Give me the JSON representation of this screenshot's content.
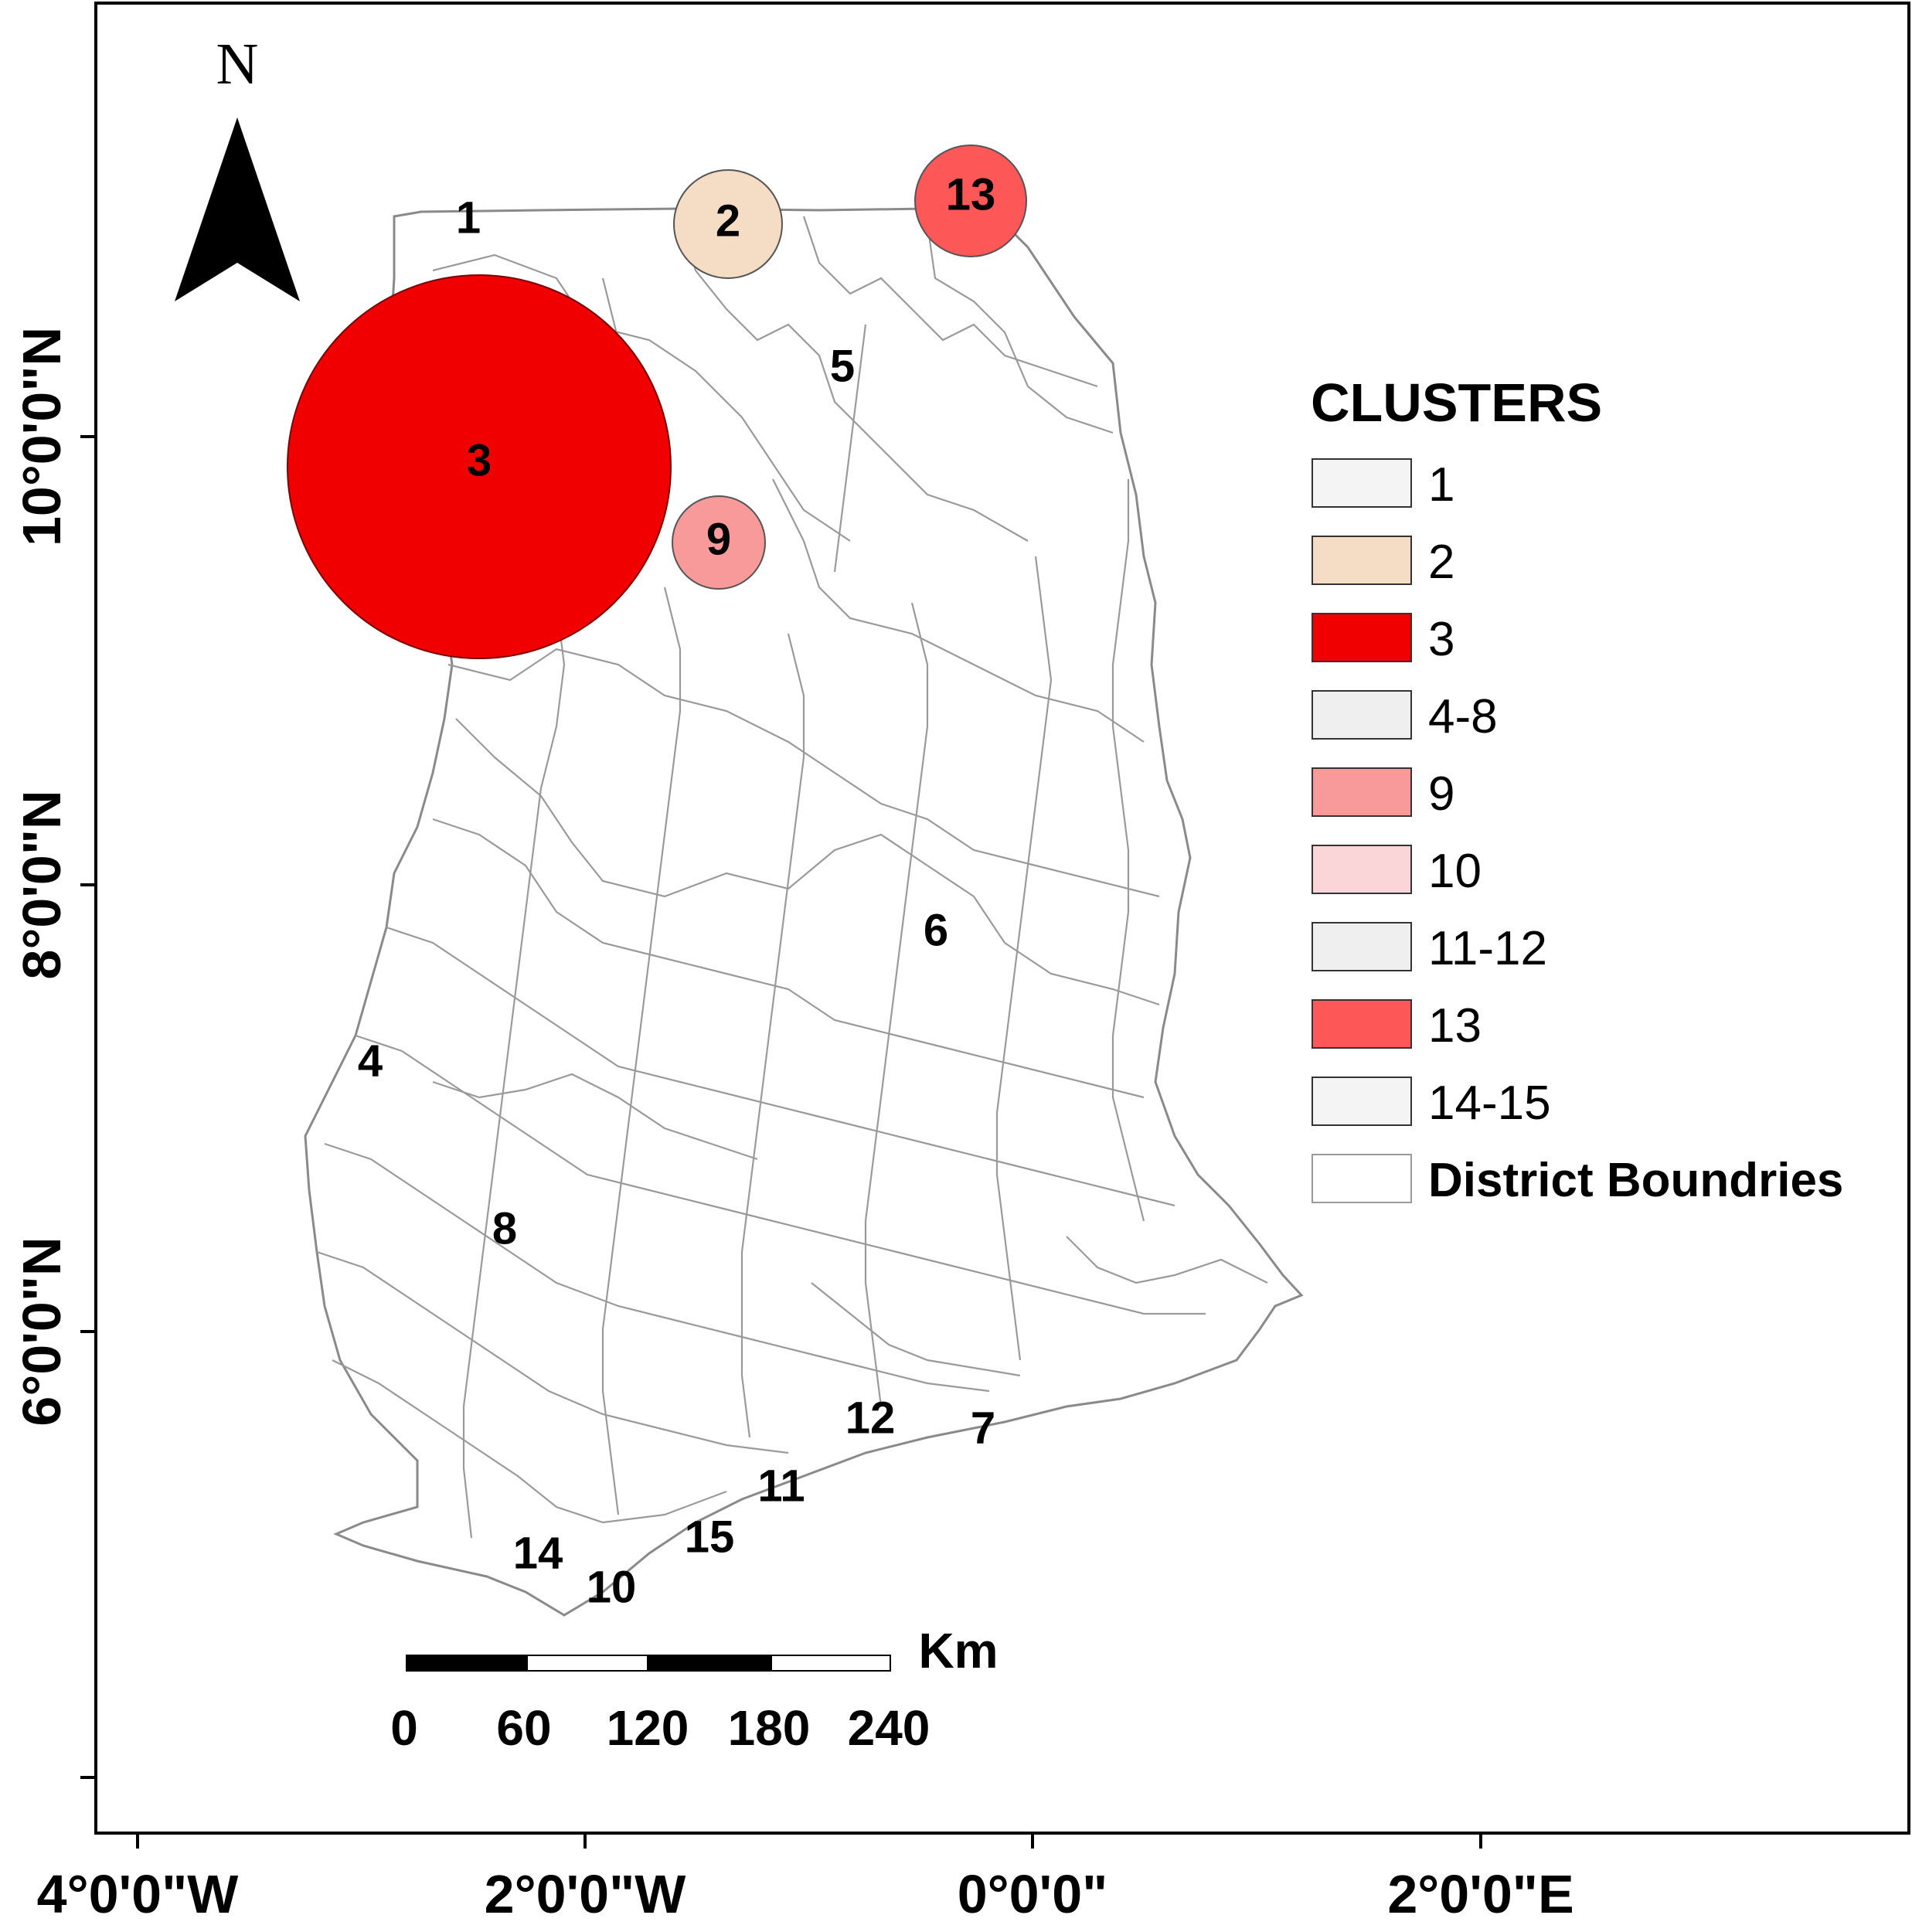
{
  "north": {
    "label": "N"
  },
  "axes": {
    "x_ticks": [
      {
        "label": "4°0'0\"W"
      },
      {
        "label": "2°0'0\"W"
      },
      {
        "label": "0°0'0\""
      },
      {
        "label": "2°0'0\"E"
      }
    ],
    "y_ticks": [
      {
        "label": "10°0'0\"N"
      },
      {
        "label": "8°0'0\"N"
      },
      {
        "label": "6°0'0\"N"
      }
    ]
  },
  "clusters": [
    {
      "id": "1",
      "label": "1"
    },
    {
      "id": "2",
      "label": "2",
      "color": "#f5dcc5"
    },
    {
      "id": "3",
      "label": "3",
      "color": "#f00000"
    },
    {
      "id": "4",
      "label": "4"
    },
    {
      "id": "5",
      "label": "5"
    },
    {
      "id": "6",
      "label": "6"
    },
    {
      "id": "7",
      "label": "7"
    },
    {
      "id": "8",
      "label": "8"
    },
    {
      "id": "9",
      "label": "9",
      "color": "#f99a9a"
    },
    {
      "id": "10",
      "label": "10"
    },
    {
      "id": "11",
      "label": "11"
    },
    {
      "id": "12",
      "label": "12"
    },
    {
      "id": "13",
      "label": "13",
      "color": "#fd5757"
    },
    {
      "id": "14",
      "label": "14"
    },
    {
      "id": "15",
      "label": "15"
    }
  ],
  "legend": {
    "title": "CLUSTERS",
    "items": [
      {
        "label": "1",
        "color": "#f4f4f4"
      },
      {
        "label": "2",
        "color": "#f5dcc5"
      },
      {
        "label": "3",
        "color": "#f00000"
      },
      {
        "label": "4-8",
        "color": "#efefef"
      },
      {
        "label": "9",
        "color": "#f99a9a"
      },
      {
        "label": "10",
        "color": "#fbd6d8"
      },
      {
        "label": "11-12",
        "color": "#efefef"
      },
      {
        "label": "13",
        "color": "#fd5757"
      },
      {
        "label": "14-15",
        "color": "#f4f4f4"
      },
      {
        "label": "District Boundries",
        "color": "#ffffff"
      }
    ]
  },
  "scale_bar": {
    "unit": "Km",
    "ticks": [
      "0",
      "60",
      "120",
      "180",
      "240"
    ]
  }
}
